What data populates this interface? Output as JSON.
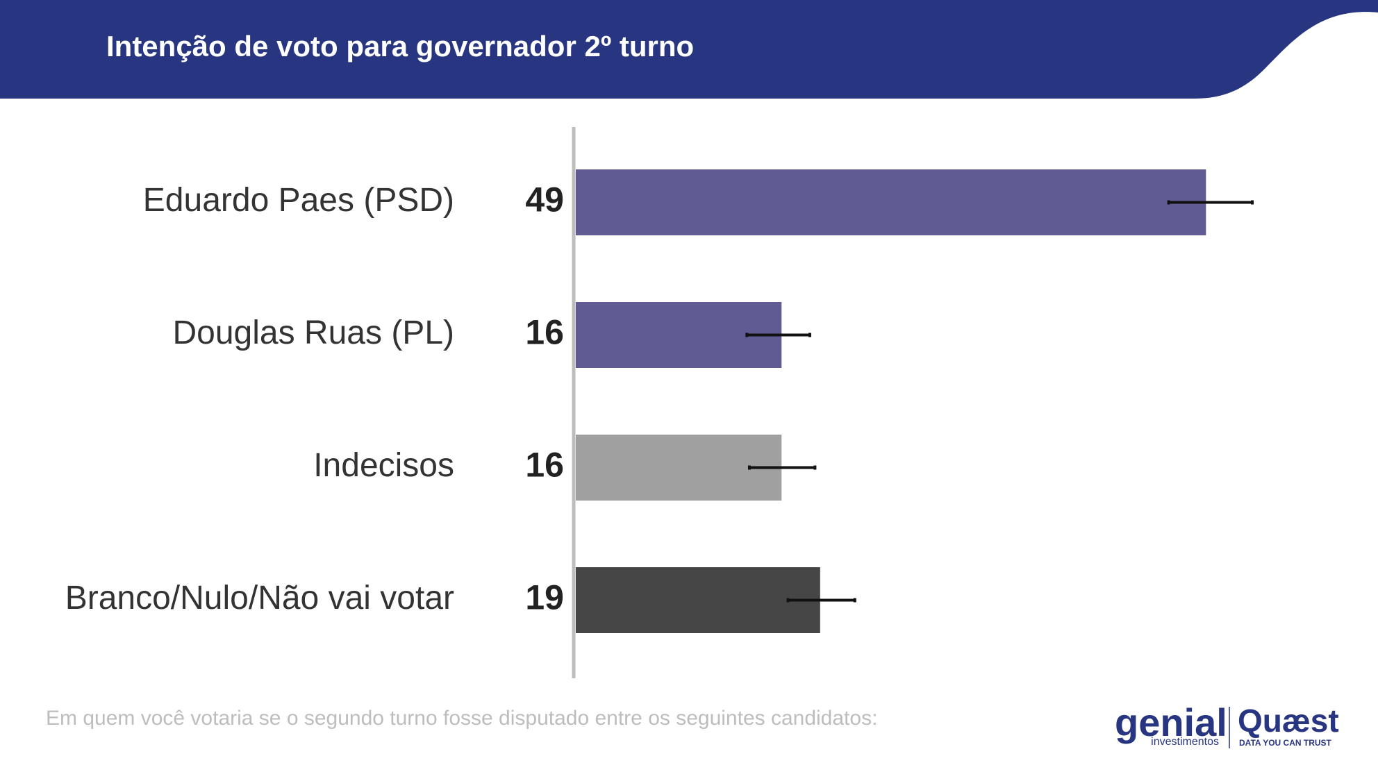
{
  "chart_data": {
    "type": "bar",
    "orientation": "horizontal",
    "title": "Intenção de voto para governador 2º turno",
    "categories": [
      "Eduardo Paes (PSD)",
      "Douglas Ruas (PL)",
      "Indecisos",
      "Branco/Nulo/Não vai votar"
    ],
    "values": [
      49,
      16,
      16,
      19
    ],
    "colors": [
      "#605c93",
      "#605c93",
      "#a0a0a0",
      "#464646"
    ],
    "error_low": [
      46.1,
      13.3,
      13.5,
      16.5
    ],
    "error_high": [
      52.6,
      18.2,
      18.6,
      21.7
    ],
    "xlim": [
      0,
      60
    ],
    "footnote": "Em quem você votaria se o segundo turno fosse disputado entre os seguintes candidatos:"
  },
  "branding": {
    "partner": "genial",
    "partner_sub": "investimentos",
    "brand": "Quæst",
    "brand_sub": "DATA YOU CAN TRUST"
  }
}
